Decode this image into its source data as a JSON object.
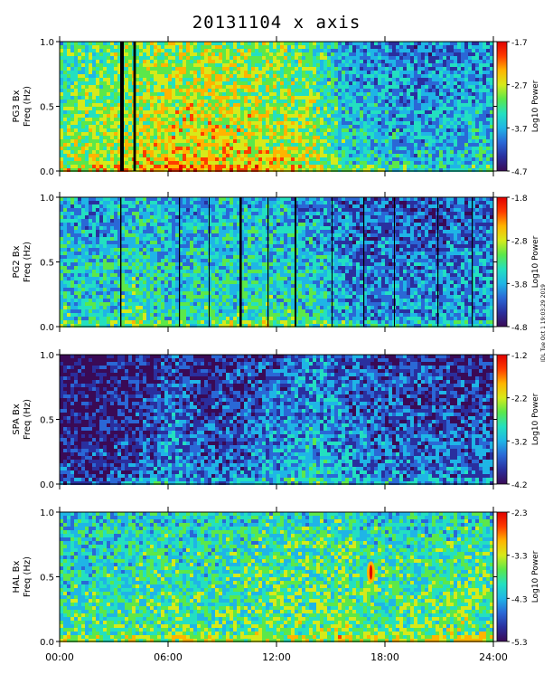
{
  "title": "20131104  x axis",
  "side_note": "IDL Tue Oct 1 19:03:29 2019",
  "colors": {
    "background": "#ffffff",
    "colorbar_stops": [
      "#3a0a55",
      "#2a2f9e",
      "#2a68d6",
      "#1fb5e6",
      "#23e0c0",
      "#5be84a",
      "#d6ea1a",
      "#ffb400",
      "#ff3b00",
      "#e00000"
    ]
  },
  "chart_data": [
    {
      "type": "heatmap",
      "station_label": "PG3 Bx",
      "ylabel": "Freq (Hz)",
      "colorbar_label": "Log10 Power",
      "colorbar_ticks": [
        "-1.7",
        "-2.7",
        "-3.7",
        "-4.7"
      ],
      "colorbar_range": [
        -4.7,
        -1.7
      ],
      "ylim": [
        0.0,
        1.0
      ],
      "y_ticks": [
        "0.0",
        "0.5",
        "1.0"
      ],
      "xlim": [
        "00:00",
        "24:00"
      ],
      "power_profile_hours": [
        0,
        2,
        4,
        6,
        8,
        10,
        12,
        14,
        16,
        18,
        20,
        22,
        24
      ],
      "power_profile_level": [
        0.45,
        0.5,
        0.55,
        0.58,
        0.58,
        0.57,
        0.55,
        0.5,
        0.3,
        0.28,
        0.25,
        0.28,
        0.3
      ],
      "data_gaps_hours": [
        [
          3.35,
          3.55
        ],
        [
          4.08,
          4.22
        ]
      ],
      "features": []
    },
    {
      "type": "heatmap",
      "station_label": "PG2 Bx",
      "ylabel": "Freq (Hz)",
      "colorbar_label": "Log10 Power",
      "colorbar_ticks": [
        "-1.8",
        "-2.8",
        "-3.8",
        "-4.8"
      ],
      "colorbar_range": [
        -4.8,
        -1.8
      ],
      "ylim": [
        0.0,
        1.0
      ],
      "y_ticks": [
        "0.0",
        "0.5",
        "1.0"
      ],
      "xlim": [
        "00:00",
        "24:00"
      ],
      "power_profile_hours": [
        0,
        2,
        4,
        6,
        8,
        10,
        12,
        14,
        16,
        18,
        20,
        22,
        24
      ],
      "power_profile_level": [
        0.35,
        0.3,
        0.38,
        0.33,
        0.35,
        0.36,
        0.34,
        0.32,
        0.22,
        0.2,
        0.2,
        0.22,
        0.24
      ],
      "data_gaps_hours": [
        [
          3.35,
          3.42
        ],
        [
          6.6,
          6.66
        ],
        [
          8.25,
          8.3
        ],
        [
          9.95,
          10.08
        ],
        [
          11.5,
          11.56
        ],
        [
          13.0,
          13.1
        ],
        [
          15.05,
          15.1
        ],
        [
          16.8,
          16.86
        ],
        [
          18.5,
          18.55
        ],
        [
          20.9,
          20.96
        ],
        [
          22.8,
          22.86
        ]
      ],
      "features": []
    },
    {
      "type": "heatmap",
      "station_label": "SPA Bx",
      "ylabel": "Freq (Hz)",
      "colorbar_label": "Log10 Power",
      "colorbar_ticks": [
        "-1.2",
        "-2.2",
        "-3.2",
        "-4.2"
      ],
      "colorbar_range": [
        -4.2,
        -1.2
      ],
      "ylim": [
        0.0,
        1.0
      ],
      "y_ticks": [
        "0.0",
        "0.5",
        "1.0"
      ],
      "xlim": [
        "00:00",
        "24:00"
      ],
      "power_profile_hours": [
        0,
        2,
        4,
        6,
        8,
        10,
        12,
        14,
        16,
        18,
        20,
        22,
        24
      ],
      "power_profile_level": [
        0.05,
        0.05,
        0.08,
        0.2,
        0.12,
        0.15,
        0.22,
        0.28,
        0.2,
        0.16,
        0.15,
        0.14,
        0.12
      ],
      "data_gaps_hours": [],
      "features": []
    },
    {
      "type": "heatmap",
      "station_label": "HAL Bx",
      "ylabel": "Freq (Hz)",
      "colorbar_label": "Log10 Power",
      "colorbar_ticks": [
        "-2.3",
        "-3.3",
        "-4.3",
        "-5.3"
      ],
      "colorbar_range": [
        -5.3,
        -2.3
      ],
      "ylim": [
        0.0,
        1.0
      ],
      "y_ticks": [
        "0.0",
        "0.5",
        "1.0"
      ],
      "xlim": [
        "00:00",
        "24:00"
      ],
      "x_ticks": [
        "00:00",
        "06:00",
        "12:00",
        "18:00",
        "24:00"
      ],
      "power_profile_hours": [
        0,
        2,
        4,
        6,
        8,
        10,
        12,
        14,
        16,
        18,
        20,
        22,
        24
      ],
      "power_profile_level": [
        0.38,
        0.38,
        0.4,
        0.42,
        0.4,
        0.42,
        0.44,
        0.44,
        0.46,
        0.42,
        0.42,
        0.44,
        0.44
      ],
      "data_gaps_hours": [],
      "features": [
        {
          "kind": "intense_emission",
          "hour_start": 17.1,
          "hour_end": 17.35,
          "freq_low": 0.45,
          "freq_high": 0.62
        }
      ]
    }
  ]
}
